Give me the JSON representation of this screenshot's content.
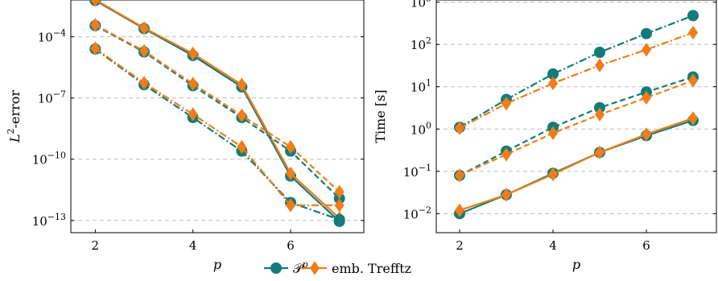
{
  "colors": {
    "pp": "#137b7b",
    "trefftz": "#f07d17",
    "grid": "#bdbdbd"
  },
  "legend": {
    "placement": "bottom-center",
    "entries": [
      {
        "key": "pp",
        "label": "𝒫",
        "sup": "p",
        "marker": "circle"
      },
      {
        "key": "trefftz",
        "label": "emb. Trefftz",
        "marker": "diamond"
      }
    ]
  },
  "chart_data": [
    {
      "type": "line",
      "xlabel": "p",
      "ylabel": "L",
      "ylabel_sup": "2",
      "ylabel_suffix": "-error",
      "yscale": "log",
      "xlim": [
        1.5,
        7.5
      ],
      "ylim_exp": [
        -13.6,
        -2.2
      ],
      "grid": true,
      "x": [
        2,
        3,
        4,
        5,
        6,
        7
      ],
      "xticks": [
        {
          "value": 2,
          "label": "2"
        },
        {
          "value": 4,
          "label": "4"
        },
        {
          "value": 6,
          "label": "6"
        }
      ],
      "yticks": [
        {
          "exp": -4,
          "base": "10",
          "sup": "−4"
        },
        {
          "exp": -7,
          "base": "10",
          "sup": "−7"
        },
        {
          "exp": -10,
          "base": "10",
          "sup": "−10"
        },
        {
          "exp": -13,
          "base": "10",
          "sup": "−13"
        }
      ],
      "series": [
        {
          "method": "pp",
          "style": "solid",
          "values": [
            0.006,
            0.00025,
            1.2e-05,
            3.5e-07,
            1.5e-11,
            9e-14
          ]
        },
        {
          "method": "trefftz",
          "style": "solid",
          "values": [
            0.0065,
            0.00027,
            1.5e-05,
            4.5e-07,
            2e-11,
            1.3e-13
          ]
        },
        {
          "method": "pp",
          "style": "dashed",
          "values": [
            0.00035,
            1.8e-05,
            4e-07,
            1.1e-08,
            2.5e-10,
            1.2e-12
          ]
        },
        {
          "method": "trefftz",
          "style": "dashed",
          "values": [
            0.00038,
            2e-05,
            5e-07,
            1.4e-08,
            4e-10,
            2.5e-12
          ]
        },
        {
          "method": "pp",
          "style": "dashdot",
          "values": [
            2.5e-05,
            4.5e-07,
            1.1e-08,
            2.5e-10,
            7.5e-13,
            1.1e-13
          ]
        },
        {
          "method": "trefftz",
          "style": "dashdot",
          "values": [
            2.7e-05,
            5.5e-07,
            1.6e-08,
            4e-10,
            5.5e-13,
            5.5e-13
          ]
        }
      ]
    },
    {
      "type": "line",
      "xlabel": "p",
      "ylabel": "Time [s]",
      "yscale": "log",
      "xlim": [
        1.5,
        7.5
      ],
      "ylim_exp": [
        -2.45,
        3.05
      ],
      "grid": true,
      "x": [
        2,
        3,
        4,
        5,
        6,
        7
      ],
      "xticks": [
        {
          "value": 2,
          "label": "2"
        },
        {
          "value": 4,
          "label": "4"
        },
        {
          "value": 6,
          "label": "6"
        }
      ],
      "yticks": [
        {
          "exp": -2,
          "base": "10",
          "sup": "−2"
        },
        {
          "exp": -1,
          "base": "10",
          "sup": "−1"
        },
        {
          "exp": 0,
          "base": "10",
          "sup": "0"
        },
        {
          "exp": 1,
          "base": "10",
          "sup": "1"
        },
        {
          "exp": 2,
          "base": "10",
          "sup": "2"
        },
        {
          "exp": 3,
          "base": "10",
          "sup": "3"
        }
      ],
      "series": [
        {
          "method": "pp",
          "style": "solid",
          "values": [
            0.01,
            0.028,
            0.09,
            0.28,
            0.7,
            1.6
          ]
        },
        {
          "method": "trefftz",
          "style": "solid",
          "values": [
            0.012,
            0.028,
            0.085,
            0.28,
            0.75,
            1.8
          ]
        },
        {
          "method": "pp",
          "style": "dashed",
          "values": [
            0.08,
            0.3,
            1.1,
            3.2,
            7.5,
            17
          ]
        },
        {
          "method": "trefftz",
          "style": "dashed",
          "values": [
            0.08,
            0.25,
            0.8,
            2.2,
            5.5,
            14
          ]
        },
        {
          "method": "pp",
          "style": "dashdot",
          "values": [
            1.1,
            5,
            20,
            65,
            180,
            480
          ]
        },
        {
          "method": "trefftz",
          "style": "dashdot",
          "values": [
            1.05,
            4,
            12,
            32,
            75,
            190
          ]
        }
      ]
    }
  ]
}
